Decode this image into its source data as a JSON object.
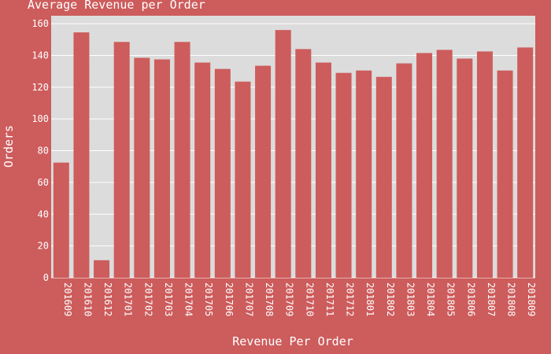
{
  "chart_data": {
    "type": "bar",
    "title": "Average Revenue per Order",
    "xlabel": "Revenue Per Order",
    "ylabel": "Orders",
    "ylim": [
      0,
      165
    ],
    "yticks": [
      0,
      20,
      40,
      60,
      80,
      100,
      120,
      140,
      160
    ],
    "grid": true,
    "colors": {
      "background": "#cd5c5c",
      "plot_background": "#dcdcdc",
      "bar": "#cd5c5c",
      "grid": "#ffffff",
      "text": "#ffffff"
    },
    "categories": [
      "201609",
      "201610",
      "201612",
      "201701",
      "201702",
      "201703",
      "201704",
      "201705",
      "201706",
      "201707",
      "201708",
      "201709",
      "201710",
      "201711",
      "201712",
      "201801",
      "201802",
      "201803",
      "201804",
      "201805",
      "201806",
      "201807",
      "201808",
      "201809"
    ],
    "values": [
      72.5,
      154.5,
      11,
      148.5,
      138.5,
      137.5,
      148.5,
      135.5,
      131.5,
      123.5,
      133.5,
      156,
      144,
      135.5,
      129,
      130.5,
      126.5,
      135,
      141.5,
      143.5,
      138,
      142.5,
      130.5,
      145
    ]
  }
}
